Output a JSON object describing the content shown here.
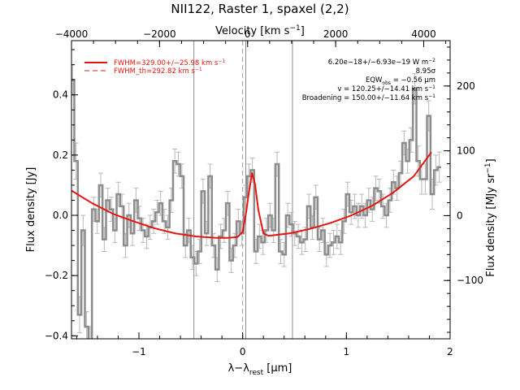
{
  "chart_data": {
    "type": "line",
    "title": "NII122, Raster 1, spaxel (2,2)",
    "xlabel": "λ−λ_rest [µm]",
    "xlabel_main": "λ−λ",
    "xlabel_sub": "rest",
    "xlabel_unit": " [µm]",
    "ylabel": "Flux density [Jy]",
    "top_axis_label_main": "Velocity [km s",
    "top_axis_label_sup": "−1",
    "top_axis_label_end": "]",
    "right_axis_label_main": "Flux density [MJy sr",
    "right_axis_label_sup": "−1",
    "right_axis_label_end": "]",
    "xlim": [
      -1.65,
      2.0
    ],
    "ylim": [
      -0.41,
      0.58
    ],
    "top_xlim": [
      -4000,
      4600
    ],
    "right_ylim": [
      -190,
      270
    ],
    "x_ticks": [
      -1,
      0,
      1,
      2
    ],
    "y_ticks": [
      -0.4,
      -0.2,
      0.0,
      0.2,
      0.4
    ],
    "top_ticks": [
      -4000,
      -2000,
      0,
      2000,
      4000
    ],
    "right_ticks": [
      -100,
      0,
      100,
      200
    ],
    "x_tick_labels": [
      "−1",
      "0",
      "1",
      "2"
    ],
    "y_tick_labels": [
      "−0.4",
      "−0.2",
      "0.0",
      "0.2",
      "0.4"
    ],
    "top_tick_labels": [
      "−4000",
      "−2000",
      "0",
      "2000",
      "4000"
    ],
    "right_tick_labels": [
      "−100",
      "0",
      "100",
      "200"
    ],
    "vlines_solid": [
      -0.47,
      0.48
    ],
    "vlines_dashed": [
      0.0
    ],
    "vline_fit_center": 0.03,
    "legend": {
      "fit_label": "FWHM=329.00+/−25.98 km s",
      "fit_sup": "−1",
      "theory_label": "FWHM_th=292.82 km s",
      "theory_sup": "−1",
      "placement": "top-left"
    },
    "annotations": {
      "line1": "6.20e−18+/−6.93e−19 W m",
      "line1_sup": "−2",
      "line2": "8.95σ",
      "line3_pre": "EQW",
      "line3_sub": "obs",
      "line3_post": " = −0.56 µm",
      "line4": "v = 120.25+/−14.41 km s",
      "line4_sup": "−1",
      "line5": "Broadening = 150.00+/−11.64 km s",
      "line5_sup": "−1"
    },
    "series": [
      {
        "name": "spectrum",
        "color": "#8c8c8c",
        "style": "steps",
        "x_start": -1.64,
        "x_step": 0.034,
        "values": [
          0.45,
          0.18,
          -0.33,
          -0.05,
          -0.37,
          -0.42,
          0.02,
          -0.02,
          0.1,
          -0.08,
          0.05,
          0.02,
          -0.05,
          0.07,
          0.03,
          -0.1,
          0.0,
          -0.06,
          0.05,
          -0.01,
          -0.05,
          -0.07,
          -0.04,
          -0.02,
          0.01,
          0.04,
          -0.02,
          -0.04,
          0.05,
          0.18,
          0.17,
          0.13,
          -0.1,
          -0.05,
          -0.14,
          -0.16,
          -0.12,
          0.08,
          -0.06,
          0.13,
          -0.1,
          -0.18,
          -0.07,
          -0.05,
          0.04,
          -0.15,
          -0.1,
          -0.02,
          -0.06,
          0.06,
          0.13,
          0.15,
          -0.12,
          -0.07,
          -0.09,
          -0.05,
          0.0,
          -0.05,
          0.17,
          -0.12,
          -0.13,
          0.0,
          -0.03,
          -0.06,
          -0.07,
          -0.09,
          -0.08,
          0.03,
          -0.04,
          0.06,
          -0.08,
          -0.05,
          -0.13,
          -0.1,
          -0.09,
          -0.07,
          -0.09,
          -0.02,
          0.07,
          0.01,
          0.03,
          0.0,
          0.03,
          0.0,
          0.05,
          0.02,
          0.09,
          0.08,
          0.03,
          0.0,
          0.05,
          0.11,
          0.09,
          0.14,
          0.24,
          0.18,
          0.25,
          0.42,
          0.18,
          0.12,
          0.12,
          0.33,
          0.07,
          0.15,
          0.16
        ],
        "errors": [
          0.05,
          0.06,
          0.06,
          0.05,
          0.05,
          0.05,
          0.04,
          0.04,
          0.04,
          0.04,
          0.04,
          0.04,
          0.04,
          0.04,
          0.04,
          0.04,
          0.04,
          0.04,
          0.04,
          0.04,
          0.04,
          0.04,
          0.04,
          0.04,
          0.04,
          0.04,
          0.04,
          0.04,
          0.04,
          0.04,
          0.04,
          0.04,
          0.04,
          0.04,
          0.04,
          0.04,
          0.04,
          0.04,
          0.04,
          0.04,
          0.04,
          0.04,
          0.04,
          0.04,
          0.04,
          0.04,
          0.04,
          0.04,
          0.04,
          0.04,
          0.04,
          0.04,
          0.04,
          0.04,
          0.04,
          0.04,
          0.04,
          0.04,
          0.04,
          0.04,
          0.04,
          0.04,
          0.04,
          0.04,
          0.04,
          0.04,
          0.04,
          0.04,
          0.04,
          0.04,
          0.04,
          0.04,
          0.04,
          0.04,
          0.04,
          0.04,
          0.04,
          0.04,
          0.04,
          0.04,
          0.04,
          0.04,
          0.04,
          0.04,
          0.04,
          0.04,
          0.04,
          0.04,
          0.04,
          0.04,
          0.04,
          0.04,
          0.04,
          0.04,
          0.04,
          0.04,
          0.04,
          0.05,
          0.05,
          0.05,
          0.05,
          0.05,
          0.05,
          0.05,
          0.05
        ]
      },
      {
        "name": "fit",
        "color": "#e8140f",
        "style": "line",
        "x": [
          -1.65,
          -1.45,
          -1.25,
          -1.05,
          -0.85,
          -0.65,
          -0.45,
          -0.25,
          -0.15,
          -0.05,
          0.0,
          0.03,
          0.06,
          0.09,
          0.12,
          0.15,
          0.2,
          0.25,
          0.45,
          0.65,
          0.85,
          1.05,
          1.25,
          1.45,
          1.65,
          1.82
        ],
        "values": [
          0.082,
          0.04,
          0.005,
          -0.02,
          -0.043,
          -0.06,
          -0.07,
          -0.075,
          -0.075,
          -0.072,
          -0.055,
          0.002,
          0.075,
          0.14,
          0.103,
          0.02,
          -0.06,
          -0.068,
          -0.06,
          -0.045,
          -0.025,
          0.0,
          0.032,
          0.075,
          0.13,
          0.21
        ]
      }
    ],
    "grid": false
  }
}
